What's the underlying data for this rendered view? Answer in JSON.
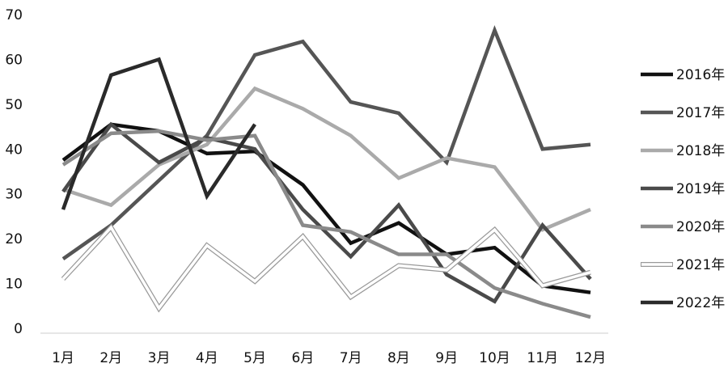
{
  "chart_data": {
    "type": "line",
    "categories": [
      "1月",
      "2月",
      "3月",
      "4月",
      "5月",
      "6月",
      "7月",
      "8月",
      "9月",
      "10月",
      "11月",
      "12月"
    ],
    "ylim": [
      0,
      70
    ],
    "yticks": [
      "0",
      "10",
      "20",
      "30",
      "40",
      "50",
      "60",
      "70"
    ],
    "grid": false,
    "legend_position": "right",
    "series": [
      {
        "name": "2016年",
        "color": "#111111",
        "style": "solid",
        "values": [
          37.5,
          45.5,
          44,
          39,
          39.5,
          32,
          19,
          23.5,
          16.5,
          18,
          9.5,
          8
        ]
      },
      {
        "name": "2017年",
        "color": "#555555",
        "style": "solid",
        "values": [
          15.5,
          23,
          33,
          43,
          61,
          64,
          50.5,
          48,
          37,
          66.5,
          40,
          41
        ]
      },
      {
        "name": "2018年",
        "color": "#aaaaaa",
        "style": "solid",
        "values": [
          31,
          27.5,
          36.5,
          41,
          53.5,
          49,
          43,
          33.5,
          38,
          36,
          22,
          26.5
        ]
      },
      {
        "name": "2019年",
        "color": "#4a4a4a",
        "style": "solid",
        "values": [
          30.5,
          45.5,
          37,
          42.5,
          40,
          26.5,
          16,
          27.5,
          12,
          6,
          23,
          11
        ]
      },
      {
        "name": "2020年",
        "color": "#8a8a8a",
        "style": "solid",
        "values": [
          36.5,
          43.5,
          44,
          42,
          43,
          23,
          21.5,
          16.5,
          16.5,
          9,
          5.5,
          2.5
        ]
      },
      {
        "name": "2021年",
        "color": "#ffffff",
        "style": "hollow",
        "values": [
          11,
          22.5,
          4.5,
          18.5,
          10.5,
          20.5,
          7,
          14,
          13,
          22,
          9.5,
          12.5
        ]
      },
      {
        "name": "2022年",
        "color": "#2a2a2a",
        "style": "solid",
        "values": [
          26.5,
          56.5,
          60,
          29.5,
          45.5,
          null,
          null,
          null,
          null,
          null,
          null,
          null
        ]
      }
    ]
  }
}
